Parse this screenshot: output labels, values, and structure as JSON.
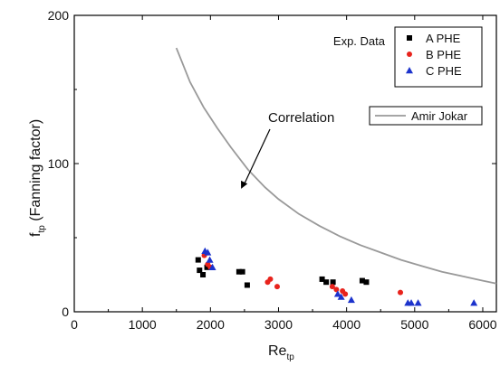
{
  "chart_data": {
    "type": "scatter",
    "xlabel": "Re",
    "xlabel_sub": "tp",
    "ylabel": "f",
    "ylabel_sub": "tp",
    "ylabel_suffix": " (Fanning factor)",
    "xlim": [
      0,
      6200
    ],
    "ylim": [
      0,
      200
    ],
    "x_ticks": [
      0,
      1000,
      2000,
      3000,
      4000,
      5000,
      6000
    ],
    "y_ticks": [
      0,
      100,
      200
    ],
    "grid": false,
    "legend_title": "Exp. Data",
    "legend_placement": "top-right",
    "series": [
      {
        "name": "A PHE",
        "marker": "square",
        "color": "#000000",
        "points": [
          [
            1820,
            35
          ],
          [
            1840,
            28
          ],
          [
            1890,
            25
          ],
          [
            1950,
            30
          ],
          [
            2420,
            27
          ],
          [
            2470,
            27
          ],
          [
            2540,
            18
          ],
          [
            3640,
            22
          ],
          [
            3700,
            20
          ],
          [
            3800,
            20
          ],
          [
            4230,
            21
          ],
          [
            4290,
            20
          ]
        ]
      },
      {
        "name": "B PHE",
        "marker": "circle",
        "color": "#e8231c",
        "points": [
          [
            1910,
            38
          ],
          [
            1960,
            32
          ],
          [
            2000,
            30
          ],
          [
            2840,
            20
          ],
          [
            2880,
            22
          ],
          [
            2980,
            17
          ],
          [
            3790,
            17
          ],
          [
            3850,
            15
          ],
          [
            3940,
            14
          ],
          [
            3980,
            12
          ],
          [
            4790,
            13
          ]
        ]
      },
      {
        "name": "C PHE",
        "marker": "triangle",
        "color": "#1c33cc",
        "points": [
          [
            1920,
            41
          ],
          [
            1960,
            40
          ],
          [
            1990,
            35
          ],
          [
            2030,
            30
          ],
          [
            3870,
            12
          ],
          [
            3920,
            10
          ],
          [
            4070,
            8
          ],
          [
            4900,
            6
          ],
          [
            4950,
            6
          ],
          [
            5050,
            6
          ],
          [
            5870,
            6
          ]
        ]
      }
    ],
    "correlation": {
      "name": "Amir Jokar",
      "annotation": "Correlation",
      "color": "#999999",
      "points": [
        [
          1500,
          178
        ],
        [
          1700,
          155
        ],
        [
          1900,
          138
        ],
        [
          2100,
          124
        ],
        [
          2300,
          111
        ],
        [
          2550,
          96
        ],
        [
          2800,
          84
        ],
        [
          3000,
          76
        ],
        [
          3300,
          66
        ],
        [
          3600,
          58
        ],
        [
          3900,
          51
        ],
        [
          4200,
          45
        ],
        [
          4500,
          40
        ],
        [
          4800,
          35
        ],
        [
          5100,
          31
        ],
        [
          5400,
          27
        ],
        [
          5700,
          24
        ],
        [
          6000,
          21
        ],
        [
          6200,
          19
        ]
      ],
      "arrow_to": [
        2450,
        83
      ]
    }
  }
}
